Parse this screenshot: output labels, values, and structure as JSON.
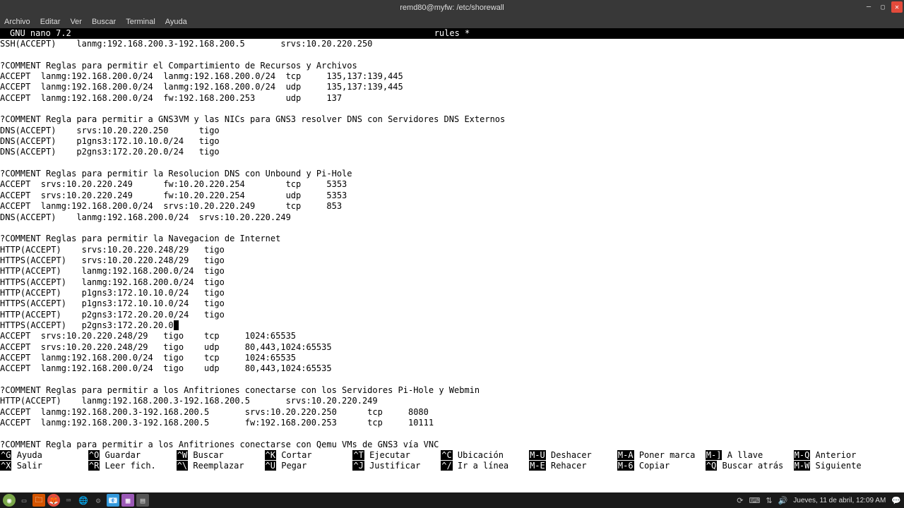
{
  "window": {
    "title": "remd80@myfw: /etc/shorewall"
  },
  "menu": {
    "archivo": "Archivo",
    "editar": "Editar",
    "ver": "Ver",
    "buscar": "Buscar",
    "terminal": "Terminal",
    "ayuda": "Ayuda"
  },
  "nano": {
    "app": "  GNU nano 7.2",
    "file": "rules *"
  },
  "content": {
    "l0": "SSH(ACCEPT)    lanmg:192.168.200.3-192.168.200.5       srvs:10.20.220.250",
    "l1": "",
    "l2": "?COMMENT Reglas para permitir el Compartimiento de Recursos y Archivos",
    "l3": "ACCEPT  lanmg:192.168.200.0/24  lanmg:192.168.200.0/24  tcp     135,137:139,445",
    "l4": "ACCEPT  lanmg:192.168.200.0/24  lanmg:192.168.200.0/24  udp     135,137:139,445",
    "l5": "ACCEPT  lanmg:192.168.200.0/24  fw:192.168.200.253      udp     137",
    "l6": "",
    "l7": "?COMMENT Regla para permitir a GNS3VM y las NICs para GNS3 resolver DNS con Servidores DNS Externos",
    "l8": "DNS(ACCEPT)    srvs:10.20.220.250      tigo",
    "l9": "DNS(ACCEPT)    p1gns3:172.10.10.0/24   tigo",
    "l10": "DNS(ACCEPT)    p2gns3:172.20.20.0/24   tigo",
    "l11": "",
    "l12": "?COMMENT Reglas para permitir la Resolucion DNS con Unbound y Pi-Hole",
    "l13": "ACCEPT  srvs:10.20.220.249      fw:10.20.220.254        tcp     5353",
    "l14": "ACCEPT  srvs:10.20.220.249      fw:10.20.220.254        udp     5353",
    "l15": "ACCEPT  lanmg:192.168.200.0/24  srvs:10.20.220.249      tcp     853",
    "l16": "DNS(ACCEPT)    lanmg:192.168.200.0/24  srvs:10.20.220.249",
    "l17": "",
    "l18": "?COMMENT Reglas para permitir la Navegacion de Internet",
    "l19": "HTTP(ACCEPT)    srvs:10.20.220.248/29   tigo",
    "l20": "HTTPS(ACCEPT)   srvs:10.20.220.248/29   tigo",
    "l21": "HTTP(ACCEPT)    lanmg:192.168.200.0/24  tigo",
    "l22": "HTTPS(ACCEPT)   lanmg:192.168.200.0/24  tigo",
    "l23": "HTTP(ACCEPT)    p1gns3:172.10.10.0/24   tigo",
    "l24": "HTTPS(ACCEPT)   p1gns3:172.10.10.0/24   tigo",
    "l25": "HTTP(ACCEPT)    p2gns3:172.20.20.0/24   tigo",
    "l26a": "HTTPS(ACCEPT)   p2gns3:172.20.20.0",
    "l27": "ACCEPT  srvs:10.20.220.248/29   tigo    tcp     1024:65535",
    "l28": "ACCEPT  srvs:10.20.220.248/29   tigo    udp     80,443,1024:65535",
    "l29": "ACCEPT  lanmg:192.168.200.0/24  tigo    tcp     1024:65535",
    "l30": "ACCEPT  lanmg:192.168.200.0/24  tigo    udp     80,443,1024:65535",
    "l31": "",
    "l32": "?COMMENT Reglas para permitir a los Anfitriones conectarse con los Servidores Pi-Hole y Webmin",
    "l33": "HTTP(ACCEPT)    lanmg:192.168.200.3-192.168.200.5       srvs:10.20.220.249",
    "l34": "ACCEPT  lanmg:192.168.200.3-192.168.200.5       srvs:10.20.220.250      tcp     8080",
    "l35": "ACCEPT  lanmg:192.168.200.3-192.168.200.5       fw:192.168.200.253      tcp     10111",
    "l36": "",
    "l37": "?COMMENT Regla para permitir a los Anfitriones conectarse con Qemu VMs de GNS3 vía VNC"
  },
  "shortcuts": {
    "r1": {
      "k1": "^G",
      "l1": "Ayuda",
      "k2": "^O",
      "l2": "Guardar",
      "k3": "^W",
      "l3": "Buscar",
      "k4": "^K",
      "l4": "Cortar",
      "k5": "^T",
      "l5": "Ejecutar",
      "k6": "^C",
      "l6": "Ubicación",
      "k7": "M-U",
      "l7": "Deshacer",
      "k8": "M-A",
      "l8": "Poner marca",
      "k9": "M-]",
      "l9": "A llave",
      "k10": "M-Q",
      "l10": "Anterior"
    },
    "r2": {
      "k1": "^X",
      "l1": "Salir",
      "k2": "^R",
      "l2": "Leer fich.",
      "k3": "^\\",
      "l3": "Reemplazar",
      "k4": "^U",
      "l4": "Pegar",
      "k5": "^J",
      "l5": "Justificar",
      "k6": "^/",
      "l6": "Ir a línea",
      "k7": "M-E",
      "l7": "Rehacer",
      "k8": "M-6",
      "l8": "Copiar",
      "k9": "^Q",
      "l9": "Buscar atrás",
      "k10": "M-W",
      "l10": "Siguiente"
    }
  },
  "taskbar": {
    "clock": "Jueves, 11 de abril, 12:09 AM"
  }
}
